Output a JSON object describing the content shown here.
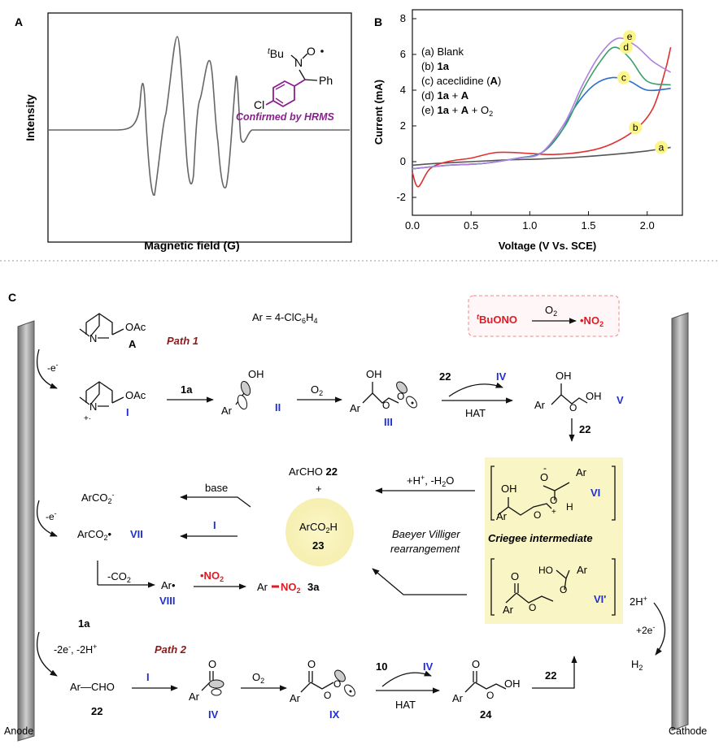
{
  "panels": {
    "a": "A",
    "b": "B",
    "c": "C"
  },
  "epr": {
    "ylabel": "Intensity",
    "xlabel": "Magnetic field (G)",
    "structure": {
      "tbu": "tBu",
      "tbu_sup": "t",
      "tbu_rest": "Bu",
      "n": "N",
      "o": "O",
      "ph": "Ph",
      "cl": "Cl"
    },
    "confirmed": "Confirmed by HRMS"
  },
  "chart_data": {
    "type": "line",
    "title": "",
    "xlabel": "Voltage (V  Vs. SCE)",
    "ylabel": "Current (mA)",
    "xlim": [
      0.0,
      2.3
    ],
    "ylim": [
      -3.0,
      8.5
    ],
    "xticks": [
      "0.0",
      "0.5",
      "1.0",
      "1.5",
      "2.0"
    ],
    "yticks": [
      "-2",
      "0",
      "2",
      "4",
      "6",
      "8"
    ],
    "legend": [
      {
        "text": "(a) Blank"
      },
      {
        "text": "(b) 1a"
      },
      {
        "text": "(c) aceclidine (A)"
      },
      {
        "text": "(d) 1a + A"
      },
      {
        "text": "(e) 1a + A + O2"
      }
    ],
    "series": [
      {
        "name": "a",
        "color": "#555555",
        "x": [
          0.0,
          0.2,
          0.5,
          0.8,
          1.1,
          1.4,
          1.7,
          2.0,
          2.2
        ],
        "y": [
          -0.2,
          -0.1,
          0.0,
          0.1,
          0.15,
          0.25,
          0.4,
          0.6,
          0.8
        ]
      },
      {
        "name": "b",
        "color": "#e03030",
        "x": [
          0.0,
          0.05,
          0.15,
          0.3,
          0.5,
          0.7,
          0.9,
          1.2,
          1.5,
          1.7,
          1.9,
          2.05,
          2.15,
          2.2
        ],
        "y": [
          -0.6,
          -1.4,
          -0.4,
          0.0,
          0.2,
          0.5,
          0.5,
          0.4,
          0.6,
          1.0,
          1.8,
          3.0,
          5.0,
          6.4
        ]
      },
      {
        "name": "c",
        "color": "#2a6fc9",
        "x": [
          0.0,
          0.3,
          0.6,
          0.9,
          1.1,
          1.25,
          1.4,
          1.55,
          1.7,
          1.85,
          2.0,
          2.2
        ],
        "y": [
          -0.4,
          -0.2,
          -0.1,
          0.2,
          0.5,
          1.5,
          3.2,
          4.3,
          4.7,
          4.5,
          4.0,
          4.1
        ]
      },
      {
        "name": "d",
        "color": "#3aa06a",
        "x": [
          0.0,
          0.3,
          0.6,
          0.9,
          1.1,
          1.3,
          1.45,
          1.6,
          1.72,
          1.85,
          2.0,
          2.2
        ],
        "y": [
          -0.4,
          -0.2,
          -0.1,
          0.2,
          0.5,
          2.0,
          4.0,
          5.6,
          6.4,
          5.8,
          4.5,
          4.3
        ]
      },
      {
        "name": "e",
        "color": "#b07fe0",
        "x": [
          0.0,
          0.3,
          0.6,
          0.9,
          1.1,
          1.3,
          1.45,
          1.6,
          1.75,
          1.9,
          2.05,
          2.2
        ],
        "y": [
          -0.4,
          -0.2,
          -0.1,
          0.2,
          0.5,
          2.2,
          4.3,
          6.0,
          6.9,
          6.5,
          5.6,
          5.0
        ]
      }
    ],
    "badges": [
      {
        "letter": "a",
        "x": 2.12,
        "y": 0.8
      },
      {
        "letter": "b",
        "x": 1.9,
        "y": 1.9
      },
      {
        "letter": "c",
        "x": 1.8,
        "y": 4.7
      },
      {
        "letter": "d",
        "x": 1.82,
        "y": 6.4
      },
      {
        "letter": "e",
        "x": 1.85,
        "y": 7.0
      }
    ]
  },
  "scheme": {
    "ar_def": "Ar = 4-ClC6H4",
    "ar_def_pre": "Ar = 4-ClC",
    "ar_def_6": "6",
    "ar_def_h": "H",
    "ar_def_4": "4",
    "tbuono": "tBuONO",
    "tbuono_sup": "t",
    "tbuono_rest": "BuONO",
    "o2": "O2",
    "no2": "•NO2",
    "path1": "Path 1",
    "path2": "Path 2",
    "neg_e": "-e-",
    "oac": "OAc",
    "n": "N",
    "rad_cation": "+·",
    "label_A": "A",
    "label_I": "I",
    "label_II": "II",
    "label_III": "III",
    "label_IV": "IV",
    "label_V": "V",
    "label_VI": "VI",
    "label_VIp": "VI'",
    "label_VII": "VII",
    "label_VIII": "VIII",
    "label_IX": "IX",
    "n1a": "1a",
    "n22": "22",
    "n23": "23",
    "n24": "24",
    "n10": "10",
    "n3a": "3a",
    "hat": "HAT",
    "oh": "OH",
    "ar": "Ar",
    "o": "O",
    "h": "H",
    "archo": "ArCHO",
    "plus": "+",
    "arco2h": "ArCO2H",
    "base": "base",
    "arco2_anion": "ArCO2-",
    "arco2_rad": "ArCO2•",
    "minus_co2": "-CO2",
    "ar_rad": "Ar•",
    "ar_no2_ar": "Ar",
    "ar_no2_no2": "NO2",
    "h_minus_h2o": "+H+, -H2O",
    "baeyer1": "Baeyer Villiger",
    "baeyer2": "rearrangement",
    "criegee": "Criegee intermediate",
    "two_e_2h": "-2e-, -2H+",
    "ar_cho": "Ar—CHO",
    "two_h": "2H+",
    "plus_2e": "+2e-",
    "h2": "H2",
    "anode": "Anode",
    "cathode": "Cathode"
  }
}
